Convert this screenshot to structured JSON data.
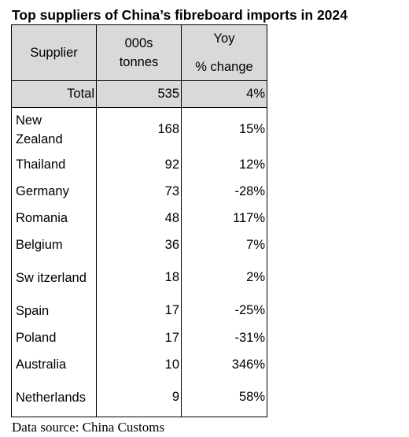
{
  "title": "Top suppliers of China’s fibreboard imports in 2024",
  "table": {
    "headers": {
      "supplier": "Supplier",
      "tonnes_line1": "000s",
      "tonnes_line2": "tonnes",
      "change_line1": "Yoy",
      "change_line2": "% change"
    },
    "total": {
      "label": "Total",
      "tonnes": "535",
      "change": "4%"
    },
    "rows": [
      {
        "supplier": "New Zealand",
        "tonnes": "168",
        "change": "15%"
      },
      {
        "supplier": "Thailand",
        "tonnes": "92",
        "change": "12%"
      },
      {
        "supplier": "Germany",
        "tonnes": "73",
        "change": "-28%"
      },
      {
        "supplier": "Romania",
        "tonnes": "48",
        "change": "117%"
      },
      {
        "supplier": "Belgium",
        "tonnes": "36",
        "change": "7%"
      },
      {
        "supplier": "Sw itzerland",
        "tonnes": "18",
        "change": "2%"
      },
      {
        "supplier": "Spain",
        "tonnes": "17",
        "change": "-25%"
      },
      {
        "supplier": "Poland",
        "tonnes": "17",
        "change": "-31%"
      },
      {
        "supplier": "Australia",
        "tonnes": "10",
        "change": "346%"
      },
      {
        "supplier": "Netherlands",
        "tonnes": "9",
        "change": "58%"
      }
    ]
  },
  "source": "Data source: China Customs",
  "colors": {
    "header_bg": "#d9d9d9",
    "border": "#000000"
  }
}
